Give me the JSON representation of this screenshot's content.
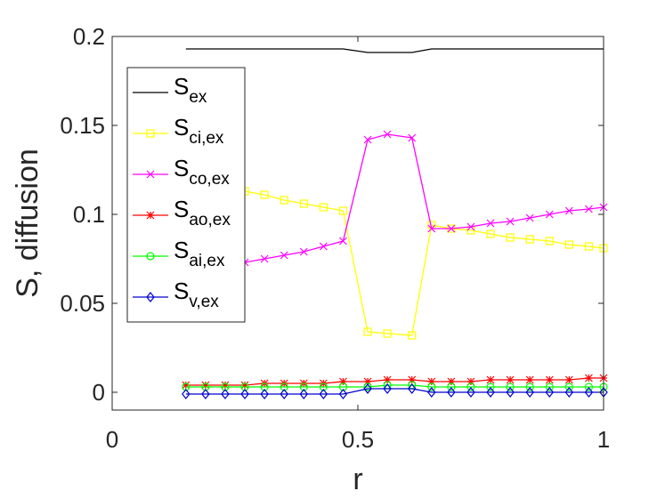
{
  "chart_data": {
    "type": "line",
    "title": "",
    "xlabel": "r",
    "ylabel": "S, diffusion",
    "xlim": [
      0,
      1
    ],
    "ylim": [
      -0.01,
      0.2
    ],
    "xticks": [
      0,
      0.5,
      1
    ],
    "xtick_labels": [
      "0",
      "0.5",
      "1"
    ],
    "yticks": [
      0,
      0.05,
      0.1,
      0.15,
      0.2
    ],
    "ytick_labels": [
      "0",
      "0.05",
      "0.1",
      "0.15",
      "0.2"
    ],
    "grid": false,
    "legend_position": "top-left",
    "x": [
      0.15,
      0.19,
      0.23,
      0.27,
      0.31,
      0.35,
      0.39,
      0.43,
      0.47,
      0.52,
      0.56,
      0.61,
      0.65,
      0.69,
      0.73,
      0.77,
      0.81,
      0.85,
      0.89,
      0.93,
      0.97,
      1.0
    ],
    "series": [
      {
        "name": "S",
        "subscript": "ex",
        "color": "#000000",
        "marker": "none",
        "values": [
          0.193,
          0.193,
          0.193,
          0.193,
          0.193,
          0.193,
          0.193,
          0.193,
          0.193,
          0.191,
          0.191,
          0.191,
          0.193,
          0.193,
          0.193,
          0.193,
          0.193,
          0.193,
          0.193,
          0.193,
          0.193,
          0.193
        ]
      },
      {
        "name": "S",
        "subscript": "ci,ex",
        "color": "#ffff00",
        "marker": "square",
        "values": [
          0.118,
          0.117,
          0.115,
          0.113,
          0.111,
          0.108,
          0.106,
          0.104,
          0.102,
          0.034,
          0.033,
          0.032,
          0.094,
          0.092,
          0.091,
          0.089,
          0.087,
          0.086,
          0.085,
          0.083,
          0.082,
          0.081
        ]
      },
      {
        "name": "S",
        "subscript": "co,ex",
        "color": "#ff00ff",
        "marker": "x",
        "values": [
          0.067,
          0.069,
          0.071,
          0.073,
          0.075,
          0.077,
          0.079,
          0.082,
          0.085,
          0.142,
          0.145,
          0.143,
          0.092,
          0.092,
          0.093,
          0.095,
          0.096,
          0.098,
          0.1,
          0.102,
          0.103,
          0.104
        ]
      },
      {
        "name": "S",
        "subscript": "ao,ex",
        "color": "#ff0000",
        "marker": "star",
        "values": [
          0.004,
          0.004,
          0.004,
          0.004,
          0.005,
          0.005,
          0.005,
          0.005,
          0.006,
          0.006,
          0.007,
          0.007,
          0.006,
          0.006,
          0.006,
          0.007,
          0.007,
          0.007,
          0.007,
          0.007,
          0.008,
          0.008
        ]
      },
      {
        "name": "S",
        "subscript": "ai,ex",
        "color": "#00ff00",
        "marker": "circle",
        "values": [
          0.003,
          0.003,
          0.003,
          0.003,
          0.003,
          0.003,
          0.003,
          0.003,
          0.003,
          0.003,
          0.004,
          0.004,
          0.003,
          0.003,
          0.003,
          0.003,
          0.003,
          0.003,
          0.003,
          0.003,
          0.003,
          0.003
        ]
      },
      {
        "name": "S",
        "subscript": "v,ex",
        "color": "#0000cd",
        "marker": "diamond",
        "values": [
          -0.001,
          -0.001,
          -0.001,
          -0.001,
          -0.001,
          -0.001,
          -0.001,
          -0.001,
          -0.001,
          0.002,
          0.002,
          0.002,
          0.0,
          0.0,
          0.0,
          0.0,
          0.0,
          0.0,
          0.0,
          0.0,
          0.0,
          0.0
        ]
      }
    ]
  }
}
